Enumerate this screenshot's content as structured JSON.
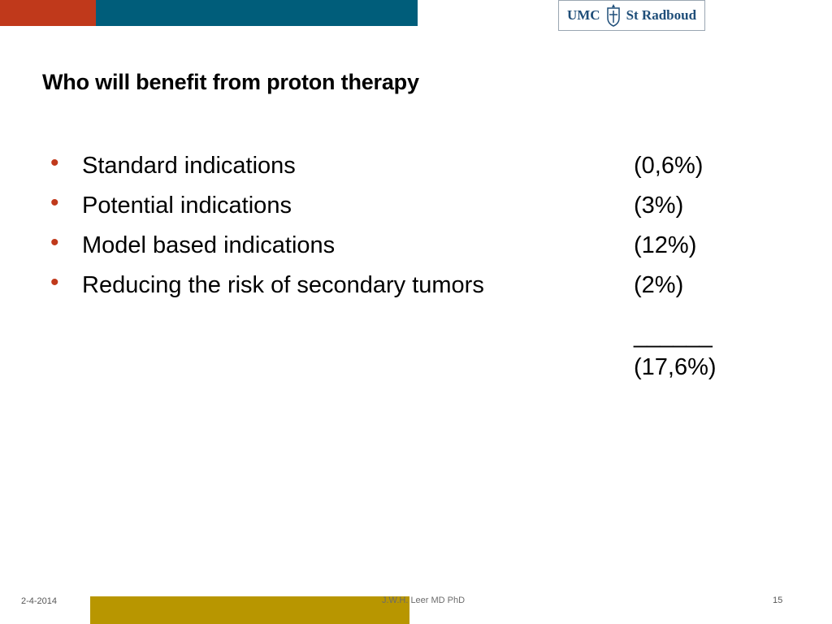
{
  "colors": {
    "orange": "#c0391b",
    "teal": "#005d7a",
    "gold": "#b89600"
  },
  "logo": {
    "left_text": "UMC",
    "right_text": "St Radboud",
    "emblem_icon": "coat-of-arms-icon"
  },
  "slide": {
    "title": "Who will benefit from proton therapy",
    "items": [
      {
        "label": "Standard indications",
        "value": "(0,6%)"
      },
      {
        "label": "Potential indications",
        "value": "(3%)"
      },
      {
        "label": "Model based indications",
        "value": "(12%)"
      },
      {
        "label": "Reducing the risk of secondary tumors",
        "value": "(2%)"
      }
    ],
    "rule": "______",
    "total": "(17,6%)"
  },
  "footer": {
    "date": "2-4-2014",
    "author": "J.W.H. Leer MD PhD",
    "page": "15"
  }
}
